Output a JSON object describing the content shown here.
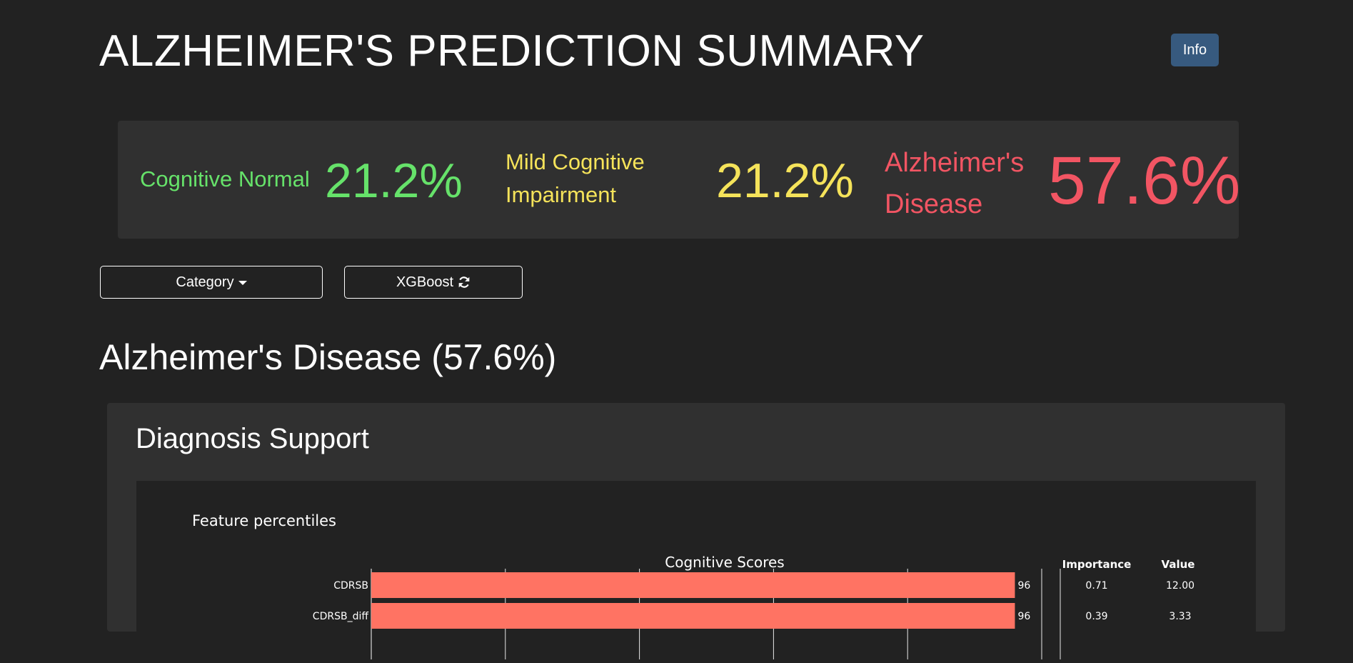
{
  "header": {
    "title": "ALZHEIMER'S PREDICTION SUMMARY",
    "info_label": "Info"
  },
  "summary": {
    "cn": {
      "label": "Cognitive Normal",
      "value": "21.2%",
      "color": "#66e26a"
    },
    "mci": {
      "label_line1": "Mild Cognitive",
      "label_line2": "Impairment",
      "value": "21.2%",
      "color": "#f5e35a"
    },
    "ad": {
      "label_line1": "Alzheimer's",
      "label_line2": "Disease",
      "value": "57.6%",
      "color": "#f25563"
    }
  },
  "controls": {
    "category_label": "Category",
    "model_label": "XGBoost"
  },
  "section": {
    "title": "Alzheimer's Disease (57.6%)",
    "card_title": "Diagnosis Support"
  },
  "chart_data": {
    "type": "bar",
    "orientation": "horizontal",
    "title": "Feature percentiles",
    "subtitle": "Cognitive Scores",
    "xlim": [
      0,
      100
    ],
    "grid": true,
    "bar_color": "#ff7363",
    "table_headers": [
      "Importance",
      "Value"
    ],
    "rows": [
      {
        "label": "CDRSB",
        "percentile": 96,
        "percentile_label": "96",
        "importance": "0.71",
        "value": "12.00"
      },
      {
        "label": "CDRSB_diff",
        "percentile": 96,
        "percentile_label": "96",
        "importance": "0.39",
        "value": "3.33"
      }
    ]
  }
}
